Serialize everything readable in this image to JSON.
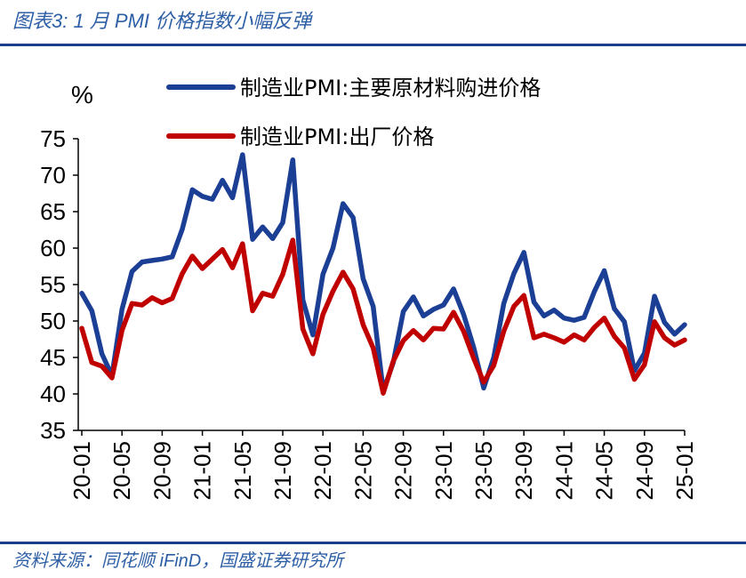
{
  "header": {
    "title": "图表3:  1 月 PMI 价格指数小幅反弹"
  },
  "footer": {
    "source": "资料来源：同花顺 iFinD，国盛证券研究所"
  },
  "chart_data": {
    "type": "line",
    "ylabel": "%",
    "ylim": [
      35,
      75
    ],
    "yticks": [
      35,
      40,
      45,
      50,
      55,
      60,
      65,
      70,
      75
    ],
    "xtick_labels": [
      "20-01",
      "20-05",
      "20-09",
      "21-01",
      "21-05",
      "21-09",
      "22-01",
      "22-05",
      "22-09",
      "23-01",
      "23-05",
      "23-09",
      "24-01",
      "24-05",
      "24-09",
      "25-01"
    ],
    "x": [
      "20-01",
      "20-02",
      "20-03",
      "20-04",
      "20-05",
      "20-06",
      "20-07",
      "20-08",
      "20-09",
      "20-10",
      "20-11",
      "20-12",
      "21-01",
      "21-02",
      "21-03",
      "21-04",
      "21-05",
      "21-06",
      "21-07",
      "21-08",
      "21-09",
      "21-10",
      "21-11",
      "21-12",
      "22-01",
      "22-02",
      "22-03",
      "22-04",
      "22-05",
      "22-06",
      "22-07",
      "22-08",
      "22-09",
      "22-10",
      "22-11",
      "22-12",
      "23-01",
      "23-02",
      "23-03",
      "23-04",
      "23-05",
      "23-06",
      "23-07",
      "23-08",
      "23-09",
      "23-10",
      "23-11",
      "23-12",
      "24-01",
      "24-02",
      "24-03",
      "24-04",
      "24-05",
      "24-06",
      "24-07",
      "24-08",
      "24-09",
      "24-10",
      "24-11",
      "24-12",
      "25-01"
    ],
    "legend_position": "top",
    "grid": false,
    "series": [
      {
        "name": "制造业PMI:主要原材料购进价格",
        "color": "#1c3f96",
        "values": [
          53.8,
          51.4,
          45.5,
          42.5,
          51.6,
          56.8,
          58.1,
          58.3,
          58.5,
          58.8,
          62.6,
          68.0,
          67.1,
          66.7,
          69.3,
          66.9,
          72.8,
          61.2,
          62.9,
          61.3,
          63.5,
          72.1,
          52.9,
          48.1,
          56.4,
          60.0,
          66.1,
          64.2,
          55.8,
          52.0,
          40.4,
          44.3,
          51.3,
          53.3,
          50.7,
          51.6,
          52.2,
          54.4,
          50.9,
          46.4,
          40.8,
          45.0,
          52.4,
          56.5,
          59.4,
          52.6,
          50.7,
          51.5,
          50.4,
          50.1,
          50.5,
          54.0,
          56.9,
          51.7,
          49.9,
          43.2,
          45.6,
          53.4,
          49.8,
          48.2,
          49.5
        ]
      },
      {
        "name": "制造业PMI:出厂价格",
        "color": "#c00000",
        "values": [
          49.0,
          44.3,
          43.8,
          42.2,
          48.7,
          52.4,
          52.2,
          53.2,
          52.5,
          53.1,
          56.5,
          58.9,
          57.2,
          58.5,
          59.8,
          57.3,
          60.6,
          51.4,
          53.8,
          53.4,
          56.4,
          61.1,
          48.9,
          45.5,
          50.9,
          54.1,
          56.7,
          54.4,
          49.5,
          46.3,
          40.1,
          44.5,
          47.3,
          48.7,
          47.4,
          49.0,
          48.9,
          51.2,
          48.6,
          44.9,
          41.6,
          43.9,
          48.6,
          52.0,
          53.5,
          47.7,
          48.2,
          47.7,
          47.1,
          48.1,
          47.4,
          49.1,
          50.4,
          47.9,
          46.3,
          42.0,
          44.0,
          49.9,
          47.7,
          46.7,
          47.4
        ]
      }
    ]
  }
}
